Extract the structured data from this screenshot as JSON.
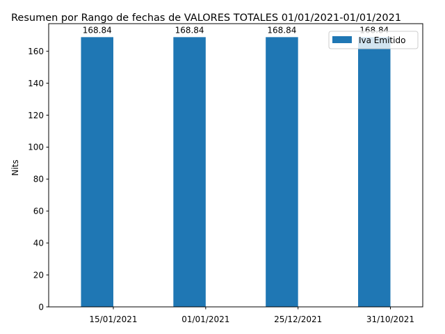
{
  "chart_data": {
    "type": "bar",
    "title": "Resumen por Rango de fechas de VALORES TOTALES 01/01/2021-01/01/2021",
    "xlabel": "",
    "ylabel": "Nits",
    "categories": [
      "15/01/2021",
      "01/01/2021",
      "25/12/2021",
      "31/10/2021"
    ],
    "series": [
      {
        "name": "Iva Emitido",
        "values": [
          168.84,
          168.84,
          168.84,
          168.84
        ],
        "color": "#1f77b4"
      }
    ],
    "data_labels": [
      "168.84",
      "168.84",
      "168.84",
      "168.84"
    ],
    "ylim": [
      0,
      177.28
    ],
    "yticks": [
      0,
      20,
      40,
      60,
      80,
      100,
      120,
      140,
      160
    ],
    "legend_position": "top-right",
    "grid": false
  }
}
